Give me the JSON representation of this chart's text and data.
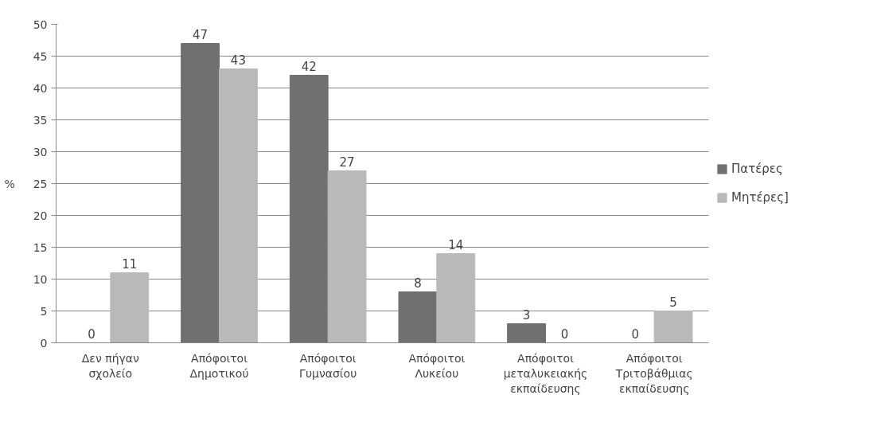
{
  "chart_data": {
    "type": "bar",
    "ylabel": "%",
    "categories": [
      "Δεν πήγαν σχολείο",
      "Απόφοιτοι Δημοτικού",
      "Απόφοιτοι Γυμνασίου",
      "Απόφοιτοι Λυκείου",
      "Απόφοιτοι μεταλυκειακής εκπαίδευσης",
      "Απόφοιτοι Τριτοβάθμιας εκπαίδευσης"
    ],
    "series": [
      {
        "name": "Πατέρες",
        "color": "#707070",
        "values": [
          0,
          47,
          42,
          8,
          3,
          0
        ]
      },
      {
        "name": "Μητέρες]",
        "color": "#b9b9b9",
        "values": [
          11,
          43,
          27,
          14,
          0,
          5
        ]
      }
    ],
    "ylim": [
      0,
      50
    ],
    "yticks": [
      0,
      5,
      10,
      15,
      20,
      25,
      30,
      35,
      40,
      45,
      50
    ],
    "grid": "y",
    "legend": "right",
    "data_labels": true
  }
}
